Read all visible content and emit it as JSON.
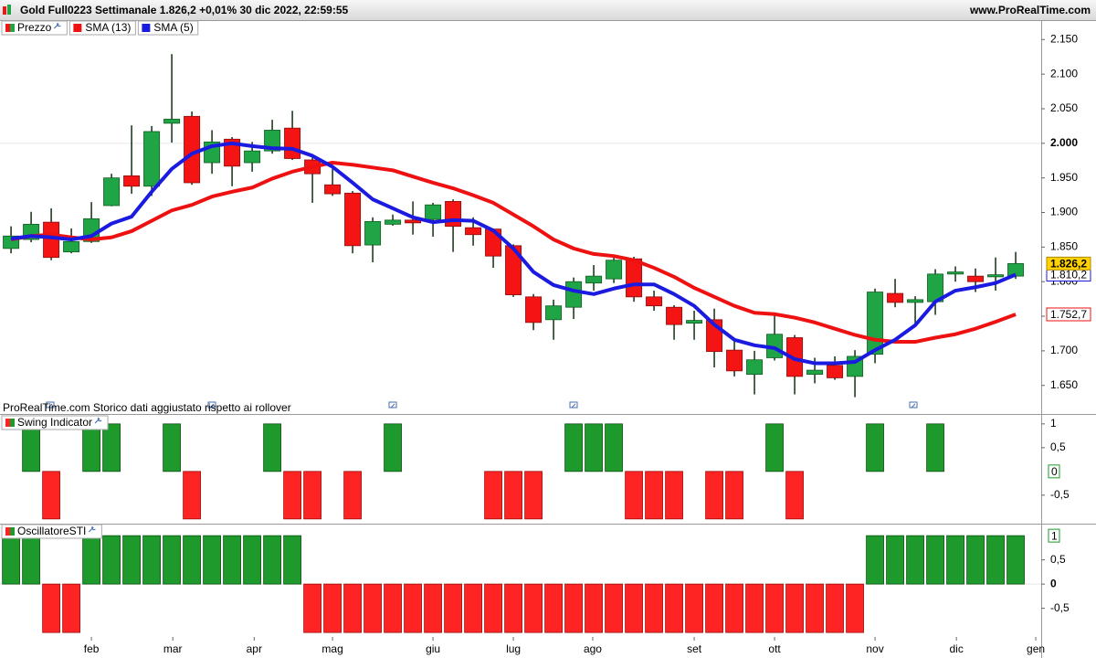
{
  "header": {
    "title": "Gold Full0223 Settimanale 1.826,2 +0,01% 30 dic 2022, 22:59:55",
    "site": "www.ProRealTime.com"
  },
  "chart_data": [
    {
      "type": "candlestick",
      "name": "Prezzo",
      "note": "ProRealTime.com  Storico dati aggiustato rispetto ai rollover",
      "up_color": "#20a546",
      "down_color": "#f41414",
      "open": [
        1848,
        1861,
        1886,
        1843,
        1858,
        1910,
        1953,
        1938,
        2029,
        2039,
        1972,
        2006,
        1972,
        1989,
        2022,
        1976,
        1940,
        1928,
        1853,
        1883,
        1889,
        1890,
        1916,
        1878,
        1876,
        1852,
        1778,
        1745,
        1763,
        1798,
        1804,
        1833,
        1778,
        1763,
        1740,
        1745,
        1701,
        1666,
        1690,
        1719,
        1666,
        1679,
        1663,
        1695,
        1783,
        1770,
        1771,
        1811,
        1808,
        1807,
        1808
      ],
      "high": [
        1880,
        1901,
        1906,
        1877,
        1915,
        1956,
        2026,
        2025,
        2129,
        2046,
        2019,
        2009,
        2002,
        2034,
        2047,
        1981,
        1963,
        1931,
        1893,
        1897,
        1916,
        1914,
        1919,
        1893,
        1877,
        1854,
        1782,
        1774,
        1806,
        1824,
        1837,
        1836,
        1787,
        1766,
        1758,
        1761,
        1716,
        1700,
        1753,
        1723,
        1690,
        1692,
        1701,
        1790,
        1804,
        1779,
        1818,
        1822,
        1819,
        1835,
        1843
      ],
      "low": [
        1841,
        1857,
        1831,
        1841,
        1856,
        1909,
        1927,
        1924,
        2001,
        1940,
        1956,
        1938,
        1959,
        1985,
        1976,
        1914,
        1924,
        1841,
        1828,
        1881,
        1868,
        1865,
        1843,
        1852,
        1820,
        1778,
        1730,
        1716,
        1746,
        1787,
        1798,
        1771,
        1758,
        1716,
        1716,
        1676,
        1663,
        1637,
        1686,
        1637,
        1653,
        1658,
        1633,
        1682,
        1763,
        1737,
        1752,
        1800,
        1785,
        1787,
        1804
      ],
      "close": [
        1866,
        1883,
        1835,
        1858,
        1891,
        1950,
        1938,
        2017,
        2035,
        1943,
        2002,
        1967,
        1989,
        2019,
        1978,
        1956,
        1927,
        1852,
        1887,
        1889,
        1885,
        1911,
        1880,
        1868,
        1837,
        1781,
        1741,
        1765,
        1800,
        1808,
        1831,
        1778,
        1765,
        1738,
        1744,
        1699,
        1671,
        1687,
        1724,
        1663,
        1672,
        1661,
        1692,
        1785,
        1770,
        1774,
        1811,
        1814,
        1800,
        1810,
        1826.2
      ],
      "close_labels": [
        null,
        null,
        null,
        null,
        null,
        null,
        null,
        null,
        null,
        null,
        null,
        null,
        null,
        null,
        null,
        null,
        null,
        null,
        null,
        null,
        null,
        null,
        null,
        null,
        null,
        null,
        null,
        null,
        null,
        null,
        null,
        null,
        null,
        null,
        null,
        null,
        null,
        null,
        null,
        null,
        null,
        null,
        null,
        null,
        null,
        null,
        null,
        null,
        null,
        null,
        "1.826,2"
      ],
      "series": [
        {
          "name": "SMA (13)",
          "color": "#ee1111",
          "values": [
            1861,
            1866,
            1868,
            1864,
            1861,
            1864,
            1873,
            1888,
            1903,
            1911,
            1923,
            1930,
            1936,
            1949,
            1959,
            1966,
            1972,
            1969,
            1965,
            1961,
            1952,
            1943,
            1935,
            1925,
            1914,
            1897,
            1880,
            1861,
            1848,
            1840,
            1837,
            1831,
            1820,
            1807,
            1791,
            1778,
            1765,
            1755,
            1753,
            1748,
            1741,
            1732,
            1723,
            1716,
            1713,
            1713,
            1719,
            1724,
            1732,
            1742,
            1752.7
          ],
          "value_labels": [
            null,
            null,
            null,
            null,
            null,
            null,
            null,
            null,
            null,
            null,
            null,
            null,
            null,
            null,
            null,
            null,
            null,
            null,
            null,
            null,
            null,
            null,
            null,
            null,
            null,
            null,
            null,
            null,
            null,
            null,
            null,
            null,
            null,
            null,
            null,
            null,
            null,
            null,
            null,
            null,
            null,
            null,
            null,
            null,
            null,
            null,
            null,
            null,
            null,
            null,
            "1.752,7"
          ]
        },
        {
          "name": "SMA (5)",
          "color": "#1a1ae0",
          "values": [
            1862,
            1866,
            1864,
            1861,
            1866,
            1884,
            1894,
            1930,
            1963,
            1985,
            1996,
            2000,
            1996,
            1993,
            1992,
            1982,
            1966,
            1943,
            1919,
            1906,
            1893,
            1886,
            1889,
            1888,
            1874,
            1848,
            1814,
            1795,
            1787,
            1782,
            1790,
            1796,
            1796,
            1782,
            1765,
            1738,
            1716,
            1708,
            1704,
            1688,
            1682,
            1682,
            1684,
            1701,
            1716,
            1737,
            1771,
            1787,
            1792,
            1798,
            1810.2
          ],
          "value_labels": [
            null,
            null,
            null,
            null,
            null,
            null,
            null,
            null,
            null,
            null,
            null,
            null,
            null,
            null,
            null,
            null,
            null,
            null,
            null,
            null,
            null,
            null,
            null,
            null,
            null,
            null,
            null,
            null,
            null,
            null,
            null,
            null,
            null,
            null,
            null,
            null,
            null,
            null,
            null,
            null,
            null,
            null,
            null,
            null,
            null,
            null,
            null,
            null,
            null,
            null,
            "1.810,2"
          ]
        }
      ],
      "xlim": [
        -0.55,
        51.27
      ],
      "ylim": [
        1610,
        2157
      ],
      "yticks": [
        {
          "value": 1650,
          "label": "1.650"
        },
        {
          "value": 1700,
          "label": "1.700"
        },
        {
          "value": 1750,
          "label": "1.750"
        },
        {
          "value": 1800,
          "label": "1.800"
        },
        {
          "value": 1850,
          "label": "1.850"
        },
        {
          "value": 1900,
          "label": "1.900"
        },
        {
          "value": 1950,
          "label": "1.950"
        },
        {
          "value": 2000,
          "label": "2.000"
        },
        {
          "value": 2050,
          "label": "2.050"
        },
        {
          "value": 2100,
          "label": "2.100"
        },
        {
          "value": 2150,
          "label": "2.150"
        }
      ],
      "highlight": 2000
    },
    {
      "type": "bar",
      "name": "Swing Indicator",
      "up_color": "#1e9a2c",
      "down_color": "#ff2424",
      "values": [
        0,
        1,
        -1,
        0,
        1,
        1,
        0,
        0,
        1,
        -1,
        0,
        0,
        0,
        1,
        -1,
        -1,
        0,
        -1,
        0,
        1,
        0,
        0,
        0,
        0,
        -1,
        -1,
        -1,
        0,
        1,
        1,
        1,
        -1,
        -1,
        -1,
        0,
        -1,
        -1,
        0,
        1,
        -1,
        0,
        0,
        0,
        1,
        0,
        0,
        1,
        0,
        0,
        0,
        0
      ],
      "xlim": [
        -0.55,
        51.27
      ],
      "ylim": [
        -1.08,
        1.17
      ],
      "yticks": [
        1,
        {
          "value": 0.5,
          "label": "0,5"
        },
        {
          "value": -0.5,
          "label": "-0,5"
        }
      ]
    },
    {
      "type": "bar",
      "name": "OscillatoreSTI",
      "up_color": "#1e9a2c",
      "down_color": "#ff2424",
      "values": [
        1,
        1,
        -1,
        -1,
        1,
        1,
        1,
        1,
        1,
        1,
        1,
        1,
        1,
        1,
        1,
        -1,
        -1,
        -1,
        -1,
        -1,
        -1,
        -1,
        -1,
        -1,
        -1,
        -1,
        -1,
        -1,
        -1,
        -1,
        -1,
        -1,
        -1,
        -1,
        -1,
        -1,
        -1,
        -1,
        -1,
        -1,
        -1,
        -1,
        -1,
        1,
        1,
        1,
        1,
        1,
        1,
        1,
        1
      ],
      "xlim": [
        -0.55,
        51.27
      ],
      "ylim": [
        -1.47,
        1.21
      ],
      "yticks": [
        {
          "value": 0.5,
          "label": "0,5"
        },
        0,
        {
          "value": -0.5,
          "label": "-0,5"
        }
      ],
      "highlight": 0,
      "xticks": [
        {
          "value": 4,
          "label": "feb"
        },
        {
          "value": 8.05,
          "label": "mar"
        },
        {
          "value": 12.1,
          "label": "apr"
        },
        {
          "value": 16,
          "label": "mag"
        },
        {
          "value": 21,
          "label": "giu"
        },
        {
          "value": 25,
          "label": "lug"
        },
        {
          "value": 28.95,
          "label": "ago"
        },
        {
          "value": 34,
          "label": "set"
        },
        {
          "value": 38,
          "label": "ott"
        },
        {
          "value": 43,
          "label": "nov"
        },
        {
          "value": 47.05,
          "label": "dic"
        },
        {
          "value": 51,
          "label": "gen"
        }
      ]
    }
  ]
}
